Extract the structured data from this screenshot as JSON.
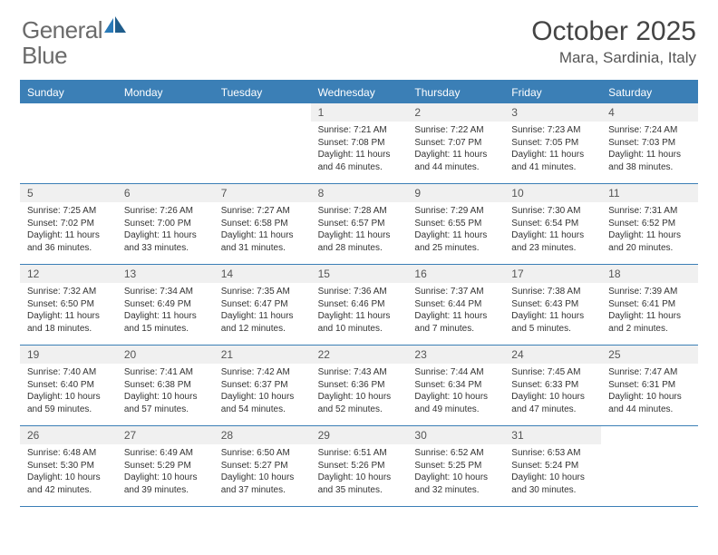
{
  "brand": {
    "general": "General",
    "blue": "Blue"
  },
  "title": "October 2025",
  "location": "Mara, Sardinia, Italy",
  "colors": {
    "header_bg": "#3b7fb6",
    "header_text": "#ffffff",
    "daynum_bg": "#f0f0f0",
    "border": "#3b7fb6",
    "logo_gray": "#6b6b6b",
    "logo_blue": "#2a7ab8"
  },
  "day_names": [
    "Sunday",
    "Monday",
    "Tuesday",
    "Wednesday",
    "Thursday",
    "Friday",
    "Saturday"
  ],
  "weeks": [
    [
      {
        "n": "",
        "sr": "",
        "ss": "",
        "dl": ""
      },
      {
        "n": "",
        "sr": "",
        "ss": "",
        "dl": ""
      },
      {
        "n": "",
        "sr": "",
        "ss": "",
        "dl": ""
      },
      {
        "n": "1",
        "sr": "Sunrise: 7:21 AM",
        "ss": "Sunset: 7:08 PM",
        "dl": "Daylight: 11 hours and 46 minutes."
      },
      {
        "n": "2",
        "sr": "Sunrise: 7:22 AM",
        "ss": "Sunset: 7:07 PM",
        "dl": "Daylight: 11 hours and 44 minutes."
      },
      {
        "n": "3",
        "sr": "Sunrise: 7:23 AM",
        "ss": "Sunset: 7:05 PM",
        "dl": "Daylight: 11 hours and 41 minutes."
      },
      {
        "n": "4",
        "sr": "Sunrise: 7:24 AM",
        "ss": "Sunset: 7:03 PM",
        "dl": "Daylight: 11 hours and 38 minutes."
      }
    ],
    [
      {
        "n": "5",
        "sr": "Sunrise: 7:25 AM",
        "ss": "Sunset: 7:02 PM",
        "dl": "Daylight: 11 hours and 36 minutes."
      },
      {
        "n": "6",
        "sr": "Sunrise: 7:26 AM",
        "ss": "Sunset: 7:00 PM",
        "dl": "Daylight: 11 hours and 33 minutes."
      },
      {
        "n": "7",
        "sr": "Sunrise: 7:27 AM",
        "ss": "Sunset: 6:58 PM",
        "dl": "Daylight: 11 hours and 31 minutes."
      },
      {
        "n": "8",
        "sr": "Sunrise: 7:28 AM",
        "ss": "Sunset: 6:57 PM",
        "dl": "Daylight: 11 hours and 28 minutes."
      },
      {
        "n": "9",
        "sr": "Sunrise: 7:29 AM",
        "ss": "Sunset: 6:55 PM",
        "dl": "Daylight: 11 hours and 25 minutes."
      },
      {
        "n": "10",
        "sr": "Sunrise: 7:30 AM",
        "ss": "Sunset: 6:54 PM",
        "dl": "Daylight: 11 hours and 23 minutes."
      },
      {
        "n": "11",
        "sr": "Sunrise: 7:31 AM",
        "ss": "Sunset: 6:52 PM",
        "dl": "Daylight: 11 hours and 20 minutes."
      }
    ],
    [
      {
        "n": "12",
        "sr": "Sunrise: 7:32 AM",
        "ss": "Sunset: 6:50 PM",
        "dl": "Daylight: 11 hours and 18 minutes."
      },
      {
        "n": "13",
        "sr": "Sunrise: 7:34 AM",
        "ss": "Sunset: 6:49 PM",
        "dl": "Daylight: 11 hours and 15 minutes."
      },
      {
        "n": "14",
        "sr": "Sunrise: 7:35 AM",
        "ss": "Sunset: 6:47 PM",
        "dl": "Daylight: 11 hours and 12 minutes."
      },
      {
        "n": "15",
        "sr": "Sunrise: 7:36 AM",
        "ss": "Sunset: 6:46 PM",
        "dl": "Daylight: 11 hours and 10 minutes."
      },
      {
        "n": "16",
        "sr": "Sunrise: 7:37 AM",
        "ss": "Sunset: 6:44 PM",
        "dl": "Daylight: 11 hours and 7 minutes."
      },
      {
        "n": "17",
        "sr": "Sunrise: 7:38 AM",
        "ss": "Sunset: 6:43 PM",
        "dl": "Daylight: 11 hours and 5 minutes."
      },
      {
        "n": "18",
        "sr": "Sunrise: 7:39 AM",
        "ss": "Sunset: 6:41 PM",
        "dl": "Daylight: 11 hours and 2 minutes."
      }
    ],
    [
      {
        "n": "19",
        "sr": "Sunrise: 7:40 AM",
        "ss": "Sunset: 6:40 PM",
        "dl": "Daylight: 10 hours and 59 minutes."
      },
      {
        "n": "20",
        "sr": "Sunrise: 7:41 AM",
        "ss": "Sunset: 6:38 PM",
        "dl": "Daylight: 10 hours and 57 minutes."
      },
      {
        "n": "21",
        "sr": "Sunrise: 7:42 AM",
        "ss": "Sunset: 6:37 PM",
        "dl": "Daylight: 10 hours and 54 minutes."
      },
      {
        "n": "22",
        "sr": "Sunrise: 7:43 AM",
        "ss": "Sunset: 6:36 PM",
        "dl": "Daylight: 10 hours and 52 minutes."
      },
      {
        "n": "23",
        "sr": "Sunrise: 7:44 AM",
        "ss": "Sunset: 6:34 PM",
        "dl": "Daylight: 10 hours and 49 minutes."
      },
      {
        "n": "24",
        "sr": "Sunrise: 7:45 AM",
        "ss": "Sunset: 6:33 PM",
        "dl": "Daylight: 10 hours and 47 minutes."
      },
      {
        "n": "25",
        "sr": "Sunrise: 7:47 AM",
        "ss": "Sunset: 6:31 PM",
        "dl": "Daylight: 10 hours and 44 minutes."
      }
    ],
    [
      {
        "n": "26",
        "sr": "Sunrise: 6:48 AM",
        "ss": "Sunset: 5:30 PM",
        "dl": "Daylight: 10 hours and 42 minutes."
      },
      {
        "n": "27",
        "sr": "Sunrise: 6:49 AM",
        "ss": "Sunset: 5:29 PM",
        "dl": "Daylight: 10 hours and 39 minutes."
      },
      {
        "n": "28",
        "sr": "Sunrise: 6:50 AM",
        "ss": "Sunset: 5:27 PM",
        "dl": "Daylight: 10 hours and 37 minutes."
      },
      {
        "n": "29",
        "sr": "Sunrise: 6:51 AM",
        "ss": "Sunset: 5:26 PM",
        "dl": "Daylight: 10 hours and 35 minutes."
      },
      {
        "n": "30",
        "sr": "Sunrise: 6:52 AM",
        "ss": "Sunset: 5:25 PM",
        "dl": "Daylight: 10 hours and 32 minutes."
      },
      {
        "n": "31",
        "sr": "Sunrise: 6:53 AM",
        "ss": "Sunset: 5:24 PM",
        "dl": "Daylight: 10 hours and 30 minutes."
      },
      {
        "n": "",
        "sr": "",
        "ss": "",
        "dl": ""
      }
    ]
  ]
}
